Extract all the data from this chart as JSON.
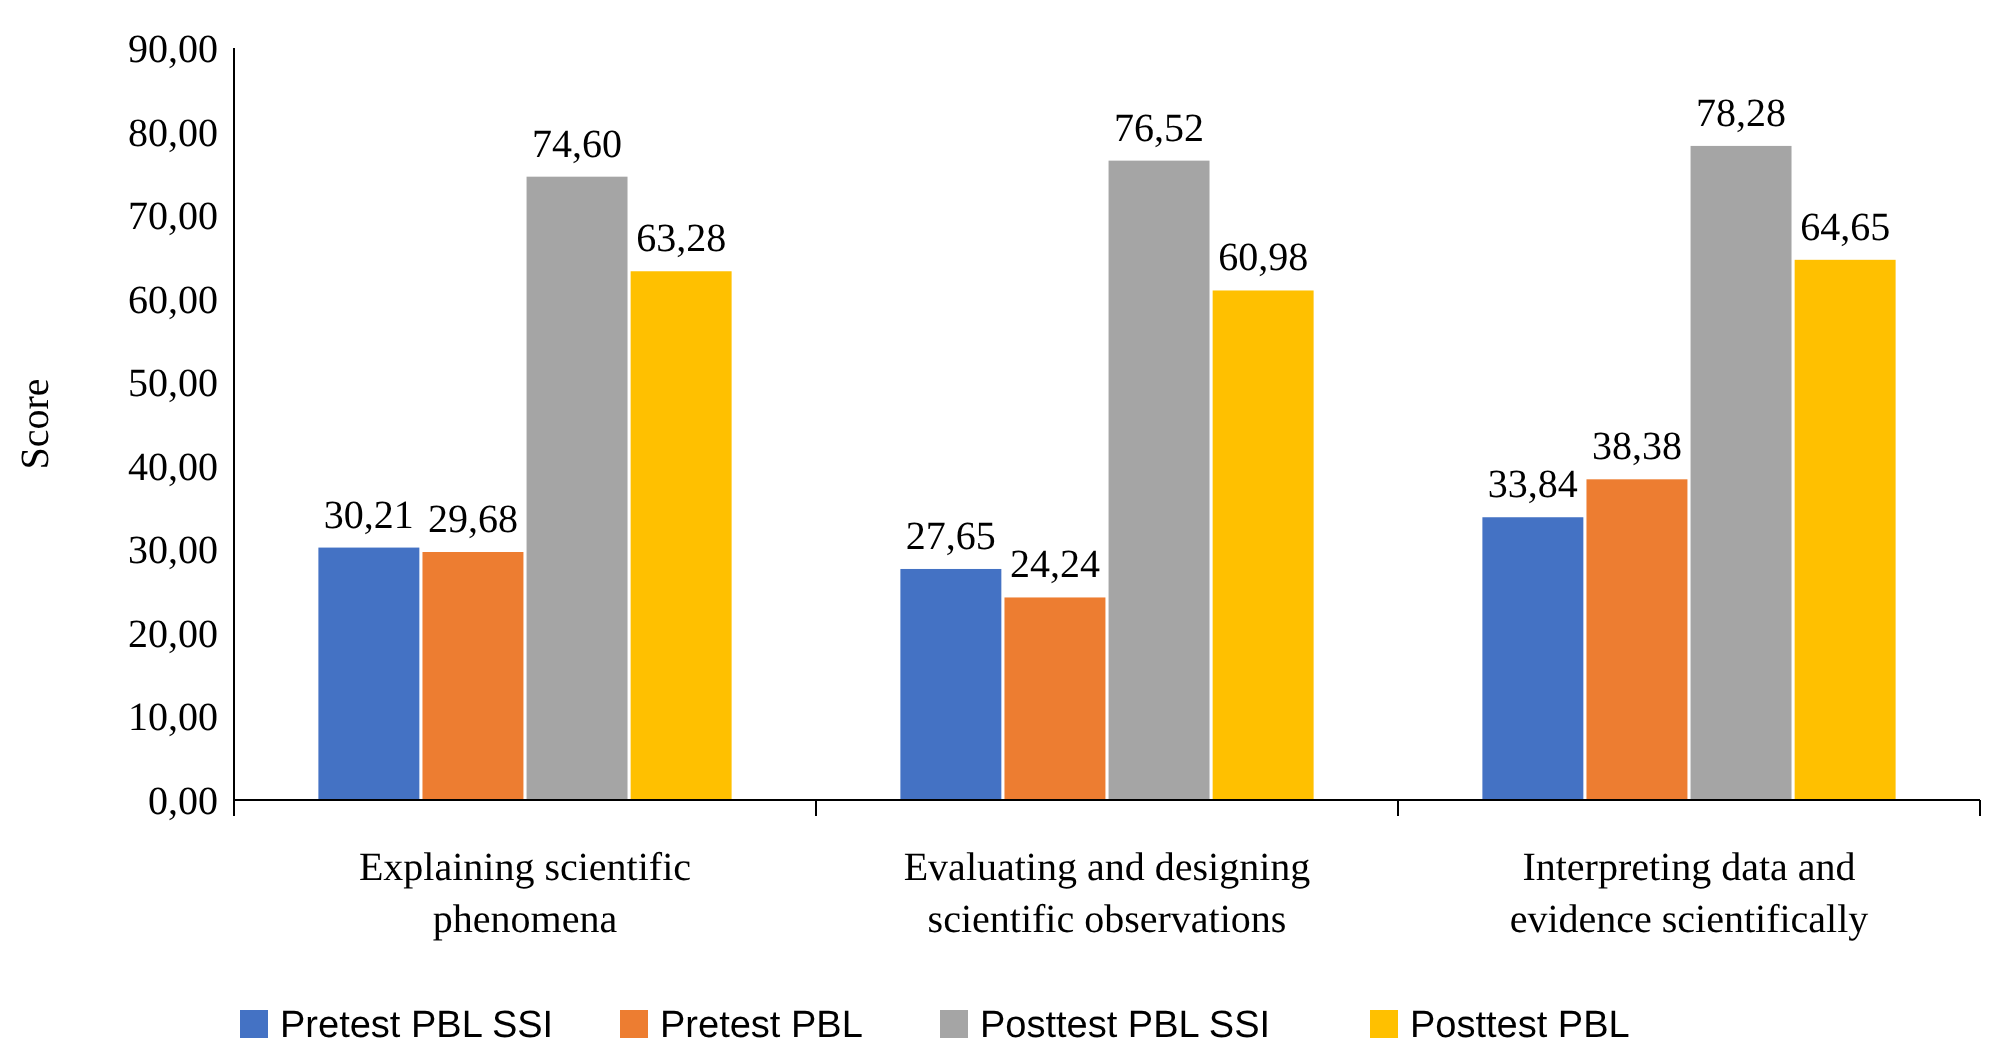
{
  "chart_data": {
    "type": "bar",
    "ylabel": "Score",
    "categories": [
      "Explaining scientific phenomena",
      "Evaluating and designing scientific observations",
      "Interpreting data and evidence scientifically"
    ],
    "series": [
      {
        "name": "Pretest PBL SSI",
        "color": "#4472c4",
        "values": [
          30.21,
          27.65,
          33.84
        ],
        "value_labels": [
          "30,21",
          "27,65",
          "33,84"
        ]
      },
      {
        "name": "Pretest PBL",
        "color": "#ed7d31",
        "values": [
          29.68,
          24.24,
          38.38
        ],
        "value_labels": [
          "29,68",
          "24,24",
          "38,38"
        ]
      },
      {
        "name": "Posttest PBL SSI",
        "color": "#a5a5a5",
        "values": [
          74.6,
          76.52,
          78.28
        ],
        "value_labels": [
          "74,60",
          "76,52",
          "78,28"
        ]
      },
      {
        "name": "Posttest PBL",
        "color": "#ffc000",
        "values": [
          63.28,
          60.98,
          64.65
        ],
        "value_labels": [
          "63,28",
          "60,98",
          "64,65"
        ]
      }
    ],
    "ylim": [
      0,
      90
    ],
    "yticks": [
      {
        "value": 0,
        "label": "0,00"
      },
      {
        "value": 10,
        "label": "10,00"
      },
      {
        "value": 20,
        "label": "20,00"
      },
      {
        "value": 30,
        "label": "30,00"
      },
      {
        "value": 40,
        "label": "40,00"
      },
      {
        "value": 50,
        "label": "50,00"
      },
      {
        "value": 60,
        "label": "60,00"
      },
      {
        "value": 70,
        "label": "70,00"
      },
      {
        "value": 80,
        "label": "80,00"
      },
      {
        "value": 90,
        "label": "90,00"
      }
    ],
    "grid": false,
    "legend": "bottom"
  }
}
